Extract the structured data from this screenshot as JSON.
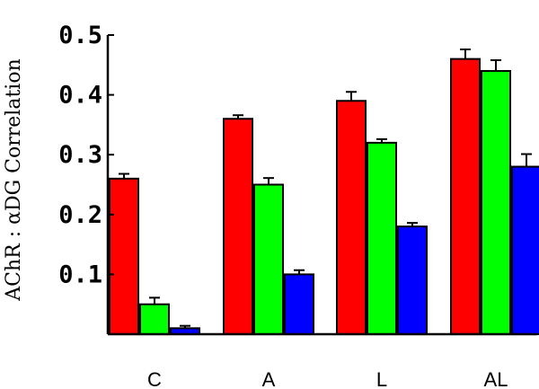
{
  "chart_data": {
    "type": "bar",
    "title": "",
    "xlabel": "",
    "ylabel": "AChR : αDG Correlation",
    "categories": [
      "C",
      "A",
      "L",
      "AL"
    ],
    "ylim": [
      0,
      0.5
    ],
    "yticks": [
      0.1,
      0.2,
      0.3,
      0.4,
      0.5
    ],
    "ytick_labels": [
      "0.1",
      "0.2",
      "0.3",
      "0.4",
      "0.5"
    ],
    "series": [
      {
        "color": "#ff0000",
        "values": [
          0.26,
          0.36,
          0.39,
          0.46
        ],
        "errors": [
          0.008,
          0.006,
          0.015,
          0.016
        ]
      },
      {
        "color": "#00ff00",
        "values": [
          0.05,
          0.25,
          0.32,
          0.44
        ],
        "errors": [
          0.011,
          0.011,
          0.006,
          0.018
        ]
      },
      {
        "color": "#0000ff",
        "values": [
          0.01,
          0.1,
          0.18,
          0.28
        ],
        "errors": [
          0.004,
          0.007,
          0.006,
          0.021
        ]
      }
    ],
    "grid": false,
    "legend": "none"
  }
}
